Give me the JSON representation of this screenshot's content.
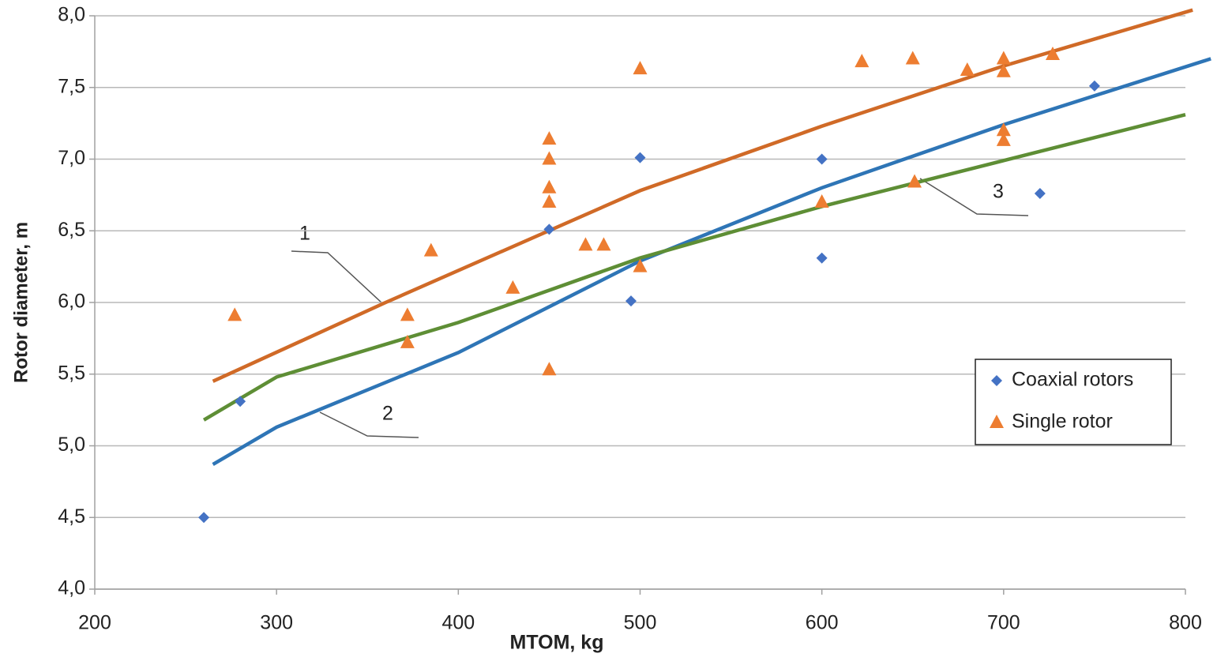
{
  "chart_data": {
    "type": "scatter",
    "x_label": "MTOM, kg",
    "y_label": "Rotor diameter, m",
    "xlim": [
      200,
      800
    ],
    "ylim": [
      4,
      8
    ],
    "xticks": [
      200,
      300,
      400,
      500,
      600,
      700,
      800
    ],
    "yticks": [
      {
        "value": 4,
        "label": "4,0"
      },
      {
        "value": 4.5,
        "label": "4,5"
      },
      {
        "value": 5,
        "label": "5,0"
      },
      {
        "value": 5.5,
        "label": "5,5"
      },
      {
        "value": 6,
        "label": "6,0"
      },
      {
        "value": 6.5,
        "label": "6,5"
      },
      {
        "value": 7,
        "label": "7,0"
      },
      {
        "value": 7.5,
        "label": "7,5"
      },
      {
        "value": 8,
        "label": "8,0"
      }
    ],
    "grid": true,
    "legend": "lower right",
    "series": [
      {
        "name": "Coaxial rotors",
        "color": "#4472c4",
        "marker": "diamond",
        "x": [
          260,
          280,
          450,
          495,
          500,
          600,
          600,
          720,
          750
        ],
        "values": [
          4.5,
          5.31,
          6.51,
          6.01,
          7.01,
          7.0,
          6.31,
          6.76,
          7.51
        ]
      },
      {
        "name": "Single rotor",
        "color": "#ed7d31",
        "marker": "triangle",
        "x": [
          277,
          372,
          372,
          385,
          430,
          450,
          450,
          450,
          450,
          450,
          470,
          480,
          500,
          500,
          600,
          622,
          650,
          651,
          680,
          700,
          700,
          700,
          700,
          727
        ],
        "values": [
          5.91,
          5.91,
          5.72,
          6.36,
          6.1,
          7.14,
          7.0,
          6.8,
          6.7,
          5.53,
          6.4,
          6.4,
          7.63,
          6.25,
          6.7,
          7.68,
          7.7,
          6.84,
          7.62,
          7.7,
          7.61,
          7.2,
          7.13,
          7.73
        ]
      }
    ],
    "trend_lines": [
      {
        "label": "1",
        "color": "#d06a27",
        "x": [
          265,
          360,
          500,
          600,
          700,
          804
        ],
        "values": [
          5.45,
          6.0,
          6.78,
          7.23,
          7.65,
          8.04
        ]
      },
      {
        "label": "2",
        "color": "#2e75b6",
        "x": [
          265,
          300,
          400,
          500,
          600,
          700,
          814
        ],
        "values": [
          4.87,
          5.13,
          5.65,
          6.29,
          6.8,
          7.24,
          7.7
        ]
      },
      {
        "label": "3",
        "color": "#5e8e35",
        "x": [
          260,
          300,
          400,
          500,
          600,
          700,
          800
        ],
        "values": [
          5.18,
          5.48,
          5.86,
          6.31,
          6.67,
          6.99,
          7.31
        ]
      }
    ]
  }
}
